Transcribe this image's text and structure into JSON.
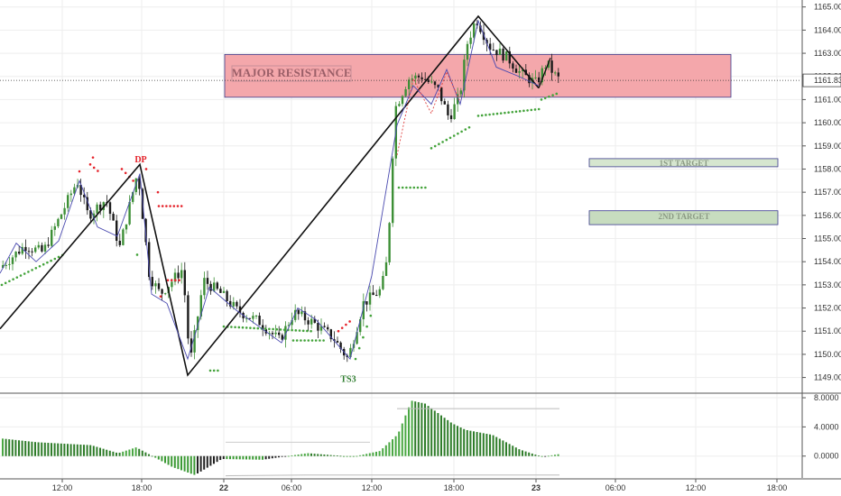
{
  "colors": {
    "up": "#3d8f36",
    "down": "#1b1b1b",
    "grid": "#eeeeee",
    "resistance_fill": "#f4a7ab",
    "resistance_border": "#3a3a8c",
    "resistance_text": "#9b5f68",
    "target1_fill": "#d6e6cf",
    "target2_fill": "#c7dcbf",
    "target_border": "#3a3a8c",
    "target_text": "#8b9a84",
    "dot_red": "#e5232b",
    "dot_green": "#43a33a",
    "zigzag": "#111111",
    "wave_blue": "#4b4bb0",
    "wave_red": "#e0403f"
  },
  "chart_data": [
    {
      "type": "candlestick",
      "price_axis": {
        "ticks": [
          "1165.00",
          "1164.00",
          "1163.00",
          "1162.00",
          "1161.00",
          "1160.00",
          "1159.00",
          "1158.00",
          "1157.00",
          "1156.00",
          "1155.00",
          "1154.00",
          "1153.00",
          "1152.00",
          "1151.00",
          "1150.00",
          "1149.00"
        ],
        "ylim": [
          1148.4,
          1165.3
        ]
      },
      "last_price": "1161.83",
      "time_axis": {
        "labels": [
          "12:00",
          "18:00",
          "22",
          "06:00",
          "12:00",
          "18:00",
          "23",
          "06:00",
          "12:00",
          "18:00"
        ],
        "bold": [
          false,
          false,
          true,
          false,
          false,
          false,
          true,
          false,
          false,
          false
        ]
      },
      "zones": [
        {
          "label": "MAJOR RESISTANCE",
          "from": 1161.1,
          "to": 1162.95
        },
        {
          "label": "1ST TARGET",
          "from": 1158.1,
          "to": 1158.45
        },
        {
          "label": "2ND TARGET",
          "from": 1155.6,
          "to": 1156.2
        }
      ],
      "annotations": [
        {
          "text": "DP",
          "price": 1158.3,
          "color": "red"
        },
        {
          "text": "TS3",
          "price": 1148.8,
          "color": "green"
        }
      ],
      "zigzag": [
        1151.1,
        1158.2,
        1149.1,
        1164.6,
        1161.5
      ]
    },
    {
      "type": "bar",
      "name": "oscillator",
      "axis_ticks": [
        "8.0000",
        "4.0000",
        "0.0000"
      ],
      "ylim": [
        -3.0,
        8.5
      ]
    }
  ]
}
